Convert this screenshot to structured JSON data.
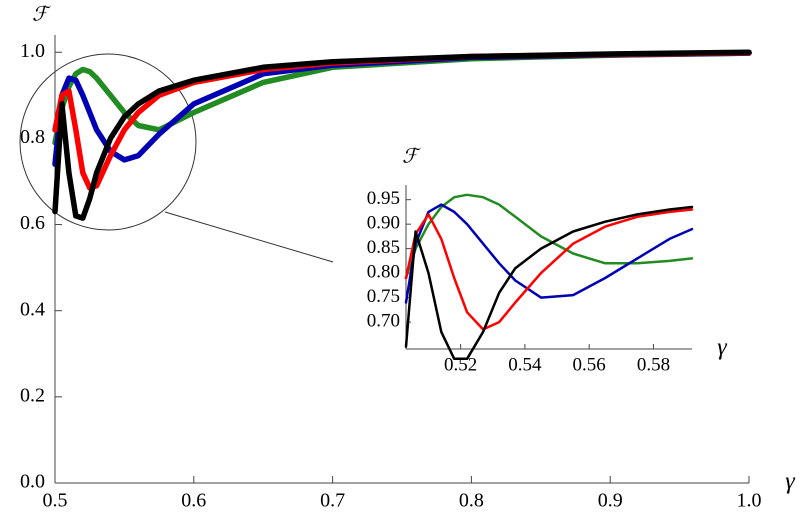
{
  "chart_data": [
    {
      "type": "line",
      "x_label": "γ",
      "y_label": "ℱ",
      "xlim": [
        0.5,
        1.0
      ],
      "ylim": [
        0,
        1.04
      ],
      "xticks": [
        {
          "value": 0.5,
          "label": "0.5"
        },
        {
          "value": 0.6,
          "label": "0.6"
        },
        {
          "value": 0.7,
          "label": "0.7"
        },
        {
          "value": 0.8,
          "label": "0.8"
        },
        {
          "value": 0.9,
          "label": "0.9"
        },
        {
          "value": 1.0,
          "label": "1.0"
        }
      ],
      "yticks": [
        {
          "value": 0,
          "label": "0.0"
        },
        {
          "value": 0.2,
          "label": "0.2"
        },
        {
          "value": 0.4,
          "label": "0.4"
        },
        {
          "value": 0.6,
          "label": "0.6"
        },
        {
          "value": 0.8,
          "label": "0.8"
        },
        {
          "value": 1.0,
          "label": "1.0"
        }
      ],
      "x": [
        0.5,
        0.505,
        0.51,
        0.515,
        0.52,
        0.525,
        0.53,
        0.54,
        0.55,
        0.56,
        0.575,
        0.6,
        0.65,
        0.7,
        0.8,
        0.9,
        1.0
      ],
      "series": [
        {
          "color": "#228b22",
          "values": [
            0.79,
            0.87,
            0.92,
            0.95,
            0.96,
            0.955,
            0.94,
            0.9,
            0.86,
            0.83,
            0.82,
            0.86,
            0.93,
            0.965,
            0.985,
            0.993,
            0.998
          ]
        },
        {
          "color": "#0000b4",
          "values": [
            0.74,
            0.9,
            0.94,
            0.935,
            0.9,
            0.86,
            0.82,
            0.77,
            0.75,
            0.76,
            0.81,
            0.88,
            0.95,
            0.97,
            0.988,
            0.994,
            0.998
          ]
        },
        {
          "color": "#ff0000",
          "values": [
            0.82,
            0.9,
            0.91,
            0.82,
            0.72,
            0.685,
            0.69,
            0.76,
            0.82,
            0.86,
            0.9,
            0.93,
            0.96,
            0.975,
            0.99,
            0.995,
            0.999
          ]
        },
        {
          "color": "#000000",
          "values": [
            0.63,
            0.88,
            0.72,
            0.62,
            0.615,
            0.66,
            0.72,
            0.8,
            0.85,
            0.88,
            0.91,
            0.935,
            0.965,
            0.978,
            0.99,
            0.996,
            1.0
          ]
        }
      ]
    },
    {
      "type": "line",
      "x_label": "γ",
      "y_label": "ℱ",
      "xlim": [
        0.503,
        0.592
      ],
      "ylim": [
        0.645,
        0.98
      ],
      "xticks": [
        0.52,
        0.54,
        0.56,
        0.58
      ],
      "yticks": [
        {
          "value": 0.7,
          "label": "0.70"
        },
        {
          "value": 0.75,
          "label": "0.75"
        },
        {
          "value": 0.8,
          "label": "0.80"
        },
        {
          "value": 0.85,
          "label": "0.85"
        },
        {
          "value": 0.9,
          "label": "0.90"
        },
        0.95
      ],
      "x": [
        0.503,
        0.506,
        0.51,
        0.514,
        0.518,
        0.522,
        0.527,
        0.532,
        0.537,
        0.545,
        0.555,
        0.565,
        0.575,
        0.585,
        0.592
      ],
      "series": [
        {
          "color": "#228b22",
          "values": [
            0.79,
            0.85,
            0.9,
            0.935,
            0.955,
            0.96,
            0.955,
            0.94,
            0.915,
            0.875,
            0.84,
            0.82,
            0.82,
            0.825,
            0.83
          ]
        },
        {
          "color": "#0000b4",
          "values": [
            0.74,
            0.86,
            0.925,
            0.94,
            0.925,
            0.9,
            0.86,
            0.82,
            0.785,
            0.75,
            0.755,
            0.79,
            0.83,
            0.87,
            0.89
          ]
        },
        {
          "color": "#ff0000",
          "values": [
            0.79,
            0.88,
            0.92,
            0.87,
            0.79,
            0.72,
            0.685,
            0.7,
            0.74,
            0.8,
            0.86,
            0.895,
            0.915,
            0.925,
            0.93
          ]
        },
        {
          "color": "#000000",
          "values": [
            0.65,
            0.885,
            0.8,
            0.68,
            0.625,
            0.625,
            0.68,
            0.76,
            0.81,
            0.85,
            0.885,
            0.905,
            0.92,
            0.93,
            0.935
          ]
        }
      ]
    }
  ]
}
